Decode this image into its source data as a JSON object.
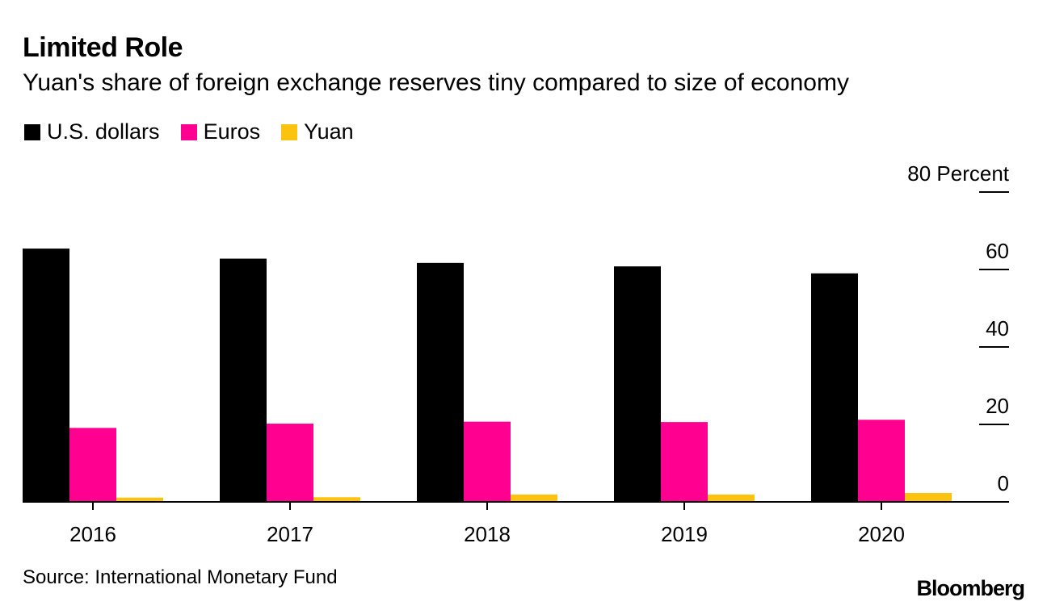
{
  "title": "Limited Role",
  "subtitle": "Yuan's share of foreign exchange reserves tiny compared to size of economy",
  "source": "Source: International Monetary Fund",
  "brand": "Bloomberg",
  "colors": {
    "usd": "#000000",
    "eur": "#ff0090",
    "cny": "#fbc310"
  },
  "chart_data": {
    "type": "bar",
    "categories": [
      "2016",
      "2017",
      "2018",
      "2019",
      "2020"
    ],
    "series": [
      {
        "name": "U.S. dollars",
        "values": [
          65.4,
          62.8,
          61.7,
          60.8,
          59.0
        ]
      },
      {
        "name": "Euros",
        "values": [
          19.1,
          20.2,
          20.7,
          20.6,
          21.2
        ]
      },
      {
        "name": "Yuan",
        "values": [
          1.1,
          1.2,
          1.9,
          1.9,
          2.3
        ]
      }
    ],
    "ylim": [
      0,
      80
    ],
    "yticks": [
      0,
      20,
      40,
      60,
      80
    ],
    "ytick_labels": [
      "0",
      "20",
      "40",
      "60",
      "80 Percent"
    ],
    "xlabel": "",
    "ylabel": "Percent",
    "legend": "top-left",
    "grid": false
  }
}
